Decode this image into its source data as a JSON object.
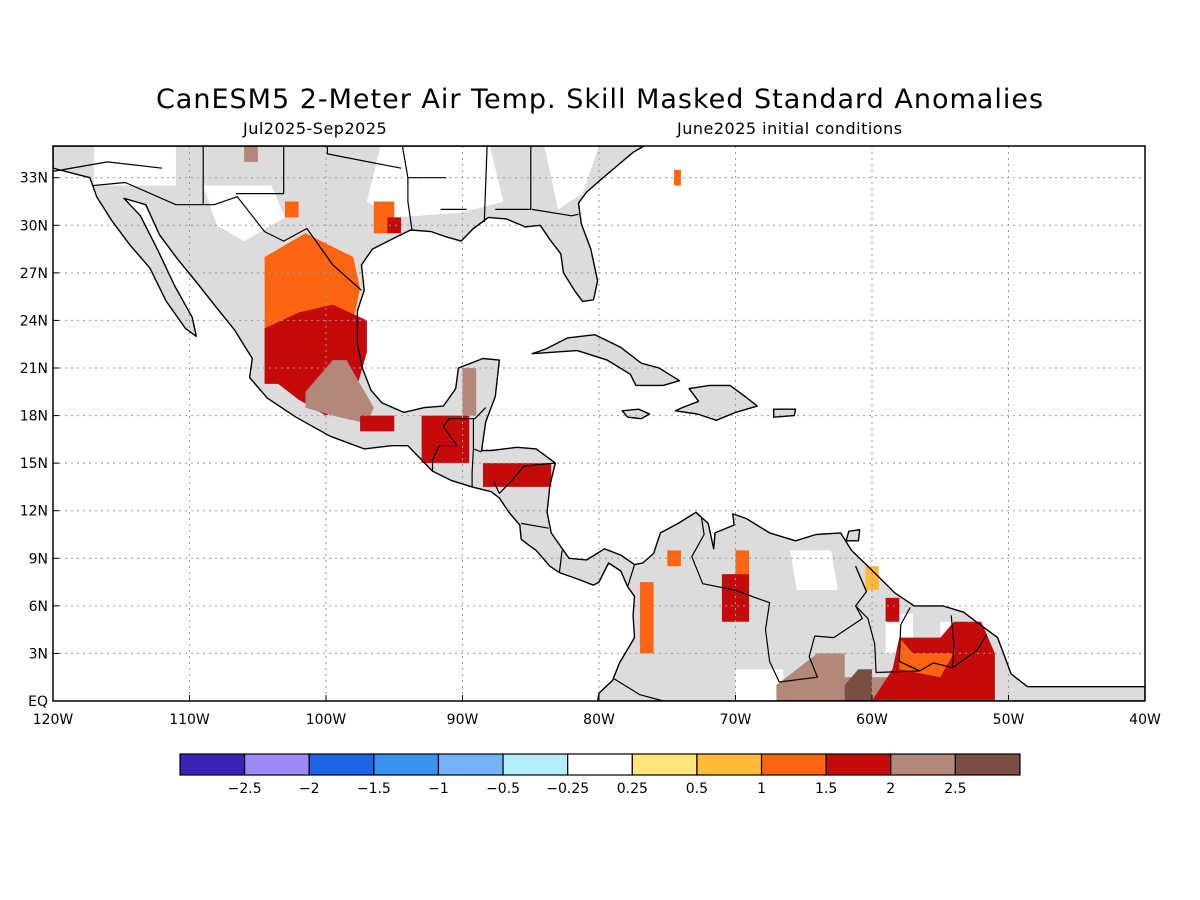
{
  "title": "CanESM5 2-Meter Air Temp. Skill Masked Standard Anomalies",
  "period": "Jul2025-Sep2025",
  "init": "June2025 initial conditions",
  "map": {
    "lon_range": [
      -120,
      -40
    ],
    "lat_range": [
      0,
      35
    ],
    "x_ticks": [
      {
        "v": -120,
        "label": "120W"
      },
      {
        "v": -110,
        "label": "110W"
      },
      {
        "v": -100,
        "label": "100W"
      },
      {
        "v": -90,
        "label": "90W"
      },
      {
        "v": -80,
        "label": "80W"
      },
      {
        "v": -70,
        "label": "70W"
      },
      {
        "v": -60,
        "label": "60W"
      },
      {
        "v": -50,
        "label": "50W"
      },
      {
        "v": -40,
        "label": "40W"
      }
    ],
    "y_ticks": [
      {
        "v": 0,
        "label": "EQ"
      },
      {
        "v": 3,
        "label": "3N"
      },
      {
        "v": 6,
        "label": "6N"
      },
      {
        "v": 9,
        "label": "9N"
      },
      {
        "v": 12,
        "label": "12N"
      },
      {
        "v": 15,
        "label": "15N"
      },
      {
        "v": 18,
        "label": "18N"
      },
      {
        "v": 21,
        "label": "21N"
      },
      {
        "v": 24,
        "label": "24N"
      },
      {
        "v": 27,
        "label": "27N"
      },
      {
        "v": 30,
        "label": "30N"
      },
      {
        "v": 33,
        "label": "33N"
      }
    ],
    "grid": true,
    "land_color": "#dcdcdc",
    "ocean_color": "#ffffff"
  },
  "colorbar": {
    "colors": [
      "#3a21b8",
      "#9f89f5",
      "#1f63e6",
      "#3b90f0",
      "#73b3f5",
      "#b4ecfa",
      "#ffffff",
      "#ffe47a",
      "#ffba3a",
      "#ff6410",
      "#c40a0a",
      "#b38779",
      "#7a4e44"
    ],
    "labels": [
      "-2.5",
      "-2",
      "-1.5",
      "-1",
      "-0.5",
      "-0.25",
      "0.25",
      "0.5",
      "1",
      "1.5",
      "2",
      "2.5"
    ]
  },
  "anomaly_regions": [
    {
      "level": 1,
      "pts": [
        [
          -104.5,
          20
        ],
        [
          -104.5,
          25.5
        ],
        [
          -104.5,
          28
        ],
        [
          -101.5,
          29.5
        ],
        [
          -98,
          28
        ],
        [
          -97.5,
          26
        ],
        [
          -98,
          24
        ],
        [
          -100,
          23
        ],
        [
          -102,
          21.5
        ]
      ]
    },
    {
      "level": 1.5,
      "pts": [
        [
          -104.5,
          20
        ],
        [
          -104.5,
          23.5
        ],
        [
          -102,
          24.5
        ],
        [
          -99.5,
          25
        ],
        [
          -97,
          24
        ],
        [
          -97,
          22
        ],
        [
          -98,
          19
        ],
        [
          -100,
          18
        ],
        [
          -102,
          19
        ],
        [
          -103.5,
          20
        ]
      ]
    },
    {
      "level": 2,
      "pts": [
        [
          -101.5,
          19.5
        ],
        [
          -99.5,
          21.5
        ],
        [
          -98.5,
          21.5
        ],
        [
          -97.5,
          20
        ],
        [
          -96.5,
          18.5
        ],
        [
          -97,
          17.5
        ],
        [
          -99.5,
          18
        ],
        [
          -101.5,
          18.5
        ]
      ]
    },
    {
      "level": 1.5,
      "pts": [
        [
          -97.5,
          17
        ],
        [
          -95,
          17
        ],
        [
          -95,
          18
        ],
        [
          -97.5,
          18
        ]
      ]
    },
    {
      "level": 1.5,
      "pts": [
        [
          -93,
          15
        ],
        [
          -89.5,
          15
        ],
        [
          -89.5,
          18
        ],
        [
          -93,
          18
        ]
      ]
    },
    {
      "level": 2,
      "pts": [
        [
          -90,
          18
        ],
        [
          -89,
          18
        ],
        [
          -89,
          21
        ],
        [
          -90,
          21
        ]
      ]
    },
    {
      "level": 1.5,
      "pts": [
        [
          -88.5,
          13.5
        ],
        [
          -83.5,
          13.5
        ],
        [
          -83.5,
          15
        ],
        [
          -88.5,
          15
        ]
      ]
    },
    {
      "level": 1,
      "pts": [
        [
          -96.5,
          29.5
        ],
        [
          -95,
          29.5
        ],
        [
          -95,
          31.5
        ],
        [
          -96.5,
          31.5
        ]
      ]
    },
    {
      "level": 1.5,
      "pts": [
        [
          -95.5,
          29.5
        ],
        [
          -94.5,
          29.5
        ],
        [
          -94.5,
          30.5
        ],
        [
          -95.5,
          30.5
        ]
      ]
    },
    {
      "level": 1,
      "pts": [
        [
          -77,
          3
        ],
        [
          -76,
          3
        ],
        [
          -76,
          7.5
        ],
        [
          -77,
          7.5
        ]
      ]
    },
    {
      "level": 1,
      "pts": [
        [
          -75,
          8.5
        ],
        [
          -74,
          8.5
        ],
        [
          -74,
          9.5
        ],
        [
          -75,
          9.5
        ]
      ]
    },
    {
      "level": 1,
      "pts": [
        [
          -70,
          8
        ],
        [
          -69,
          8
        ],
        [
          -69,
          9.5
        ],
        [
          -70,
          9.5
        ]
      ]
    },
    {
      "level": 1.5,
      "pts": [
        [
          -71,
          5
        ],
        [
          -69,
          5
        ],
        [
          -69,
          8
        ],
        [
          -71,
          8
        ]
      ]
    },
    {
      "level": 2,
      "pts": [
        [
          -67,
          0
        ],
        [
          -57,
          0
        ],
        [
          -57,
          1.5
        ],
        [
          -62,
          1.5
        ],
        [
          -62,
          3
        ],
        [
          -64,
          3
        ],
        [
          -67,
          1
        ]
      ]
    },
    {
      "level": 2.5,
      "pts": [
        [
          -62,
          0
        ],
        [
          -60,
          0
        ],
        [
          -60,
          2
        ],
        [
          -61,
          2
        ],
        [
          -62,
          1
        ]
      ]
    },
    {
      "level": 1.5,
      "pts": [
        [
          -60,
          0
        ],
        [
          -51,
          0
        ],
        [
          -51,
          3
        ],
        [
          -52,
          5
        ],
        [
          -54,
          5
        ],
        [
          -55,
          4
        ],
        [
          -58,
          4
        ],
        [
          -58.5,
          2
        ]
      ]
    },
    {
      "level": 1,
      "pts": [
        [
          -58,
          2
        ],
        [
          -55,
          1.5
        ],
        [
          -54,
          3
        ],
        [
          -57,
          3
        ],
        [
          -58,
          4
        ]
      ]
    },
    {
      "level": 0.5,
      "pts": [
        [
          -60.5,
          7
        ],
        [
          -59.5,
          7
        ],
        [
          -59.5,
          8.5
        ],
        [
          -60.5,
          8.5
        ]
      ]
    },
    {
      "level": 1.5,
      "pts": [
        [
          -59,
          5
        ],
        [
          -58,
          5
        ],
        [
          -58,
          6.5
        ],
        [
          -59,
          6.5
        ]
      ]
    },
    {
      "level": 1,
      "pts": [
        [
          -74.5,
          32.5
        ],
        [
          -74,
          32.5
        ],
        [
          -74,
          33.5
        ],
        [
          -74.5,
          33.5
        ]
      ]
    },
    {
      "level": 2,
      "pts": [
        [
          -106,
          34
        ],
        [
          -105,
          34
        ],
        [
          -105,
          35
        ],
        [
          -106,
          35
        ]
      ]
    },
    {
      "level": 1,
      "pts": [
        [
          -103,
          30.5
        ],
        [
          -102,
          30.5
        ],
        [
          -102,
          31.5
        ],
        [
          -103,
          31.5
        ]
      ]
    }
  ]
}
